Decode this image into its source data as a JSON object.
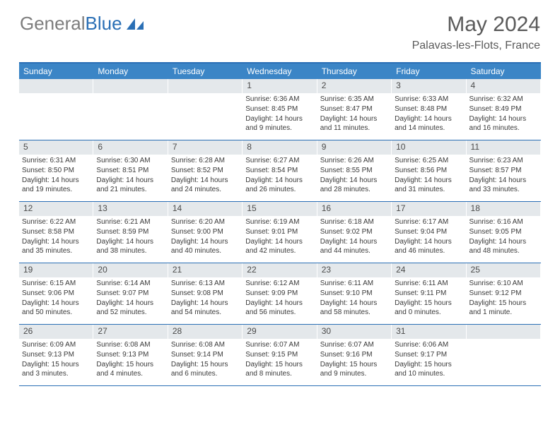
{
  "logo": {
    "text1": "General",
    "text2": "Blue"
  },
  "header": {
    "title": "May 2024",
    "location": "Palavas-les-Flots, France"
  },
  "colors": {
    "header_bar": "#3b85c6",
    "accent_border": "#2a6fb5",
    "daynum_bg": "#e4e8eb",
    "text_gray": "#5a5a5a"
  },
  "weekdays": [
    "Sunday",
    "Monday",
    "Tuesday",
    "Wednesday",
    "Thursday",
    "Friday",
    "Saturday"
  ],
  "weeks": [
    [
      null,
      null,
      null,
      {
        "n": "1",
        "sr": "6:36 AM",
        "ss": "8:45 PM",
        "dl": "14 hours and 9 minutes."
      },
      {
        "n": "2",
        "sr": "6:35 AM",
        "ss": "8:47 PM",
        "dl": "14 hours and 11 minutes."
      },
      {
        "n": "3",
        "sr": "6:33 AM",
        "ss": "8:48 PM",
        "dl": "14 hours and 14 minutes."
      },
      {
        "n": "4",
        "sr": "6:32 AM",
        "ss": "8:49 PM",
        "dl": "14 hours and 16 minutes."
      }
    ],
    [
      {
        "n": "5",
        "sr": "6:31 AM",
        "ss": "8:50 PM",
        "dl": "14 hours and 19 minutes."
      },
      {
        "n": "6",
        "sr": "6:30 AM",
        "ss": "8:51 PM",
        "dl": "14 hours and 21 minutes."
      },
      {
        "n": "7",
        "sr": "6:28 AM",
        "ss": "8:52 PM",
        "dl": "14 hours and 24 minutes."
      },
      {
        "n": "8",
        "sr": "6:27 AM",
        "ss": "8:54 PM",
        "dl": "14 hours and 26 minutes."
      },
      {
        "n": "9",
        "sr": "6:26 AM",
        "ss": "8:55 PM",
        "dl": "14 hours and 28 minutes."
      },
      {
        "n": "10",
        "sr": "6:25 AM",
        "ss": "8:56 PM",
        "dl": "14 hours and 31 minutes."
      },
      {
        "n": "11",
        "sr": "6:23 AM",
        "ss": "8:57 PM",
        "dl": "14 hours and 33 minutes."
      }
    ],
    [
      {
        "n": "12",
        "sr": "6:22 AM",
        "ss": "8:58 PM",
        "dl": "14 hours and 35 minutes."
      },
      {
        "n": "13",
        "sr": "6:21 AM",
        "ss": "8:59 PM",
        "dl": "14 hours and 38 minutes."
      },
      {
        "n": "14",
        "sr": "6:20 AM",
        "ss": "9:00 PM",
        "dl": "14 hours and 40 minutes."
      },
      {
        "n": "15",
        "sr": "6:19 AM",
        "ss": "9:01 PM",
        "dl": "14 hours and 42 minutes."
      },
      {
        "n": "16",
        "sr": "6:18 AM",
        "ss": "9:02 PM",
        "dl": "14 hours and 44 minutes."
      },
      {
        "n": "17",
        "sr": "6:17 AM",
        "ss": "9:04 PM",
        "dl": "14 hours and 46 minutes."
      },
      {
        "n": "18",
        "sr": "6:16 AM",
        "ss": "9:05 PM",
        "dl": "14 hours and 48 minutes."
      }
    ],
    [
      {
        "n": "19",
        "sr": "6:15 AM",
        "ss": "9:06 PM",
        "dl": "14 hours and 50 minutes."
      },
      {
        "n": "20",
        "sr": "6:14 AM",
        "ss": "9:07 PM",
        "dl": "14 hours and 52 minutes."
      },
      {
        "n": "21",
        "sr": "6:13 AM",
        "ss": "9:08 PM",
        "dl": "14 hours and 54 minutes."
      },
      {
        "n": "22",
        "sr": "6:12 AM",
        "ss": "9:09 PM",
        "dl": "14 hours and 56 minutes."
      },
      {
        "n": "23",
        "sr": "6:11 AM",
        "ss": "9:10 PM",
        "dl": "14 hours and 58 minutes."
      },
      {
        "n": "24",
        "sr": "6:11 AM",
        "ss": "9:11 PM",
        "dl": "15 hours and 0 minutes."
      },
      {
        "n": "25",
        "sr": "6:10 AM",
        "ss": "9:12 PM",
        "dl": "15 hours and 1 minute."
      }
    ],
    [
      {
        "n": "26",
        "sr": "6:09 AM",
        "ss": "9:13 PM",
        "dl": "15 hours and 3 minutes."
      },
      {
        "n": "27",
        "sr": "6:08 AM",
        "ss": "9:13 PM",
        "dl": "15 hours and 4 minutes."
      },
      {
        "n": "28",
        "sr": "6:08 AM",
        "ss": "9:14 PM",
        "dl": "15 hours and 6 minutes."
      },
      {
        "n": "29",
        "sr": "6:07 AM",
        "ss": "9:15 PM",
        "dl": "15 hours and 8 minutes."
      },
      {
        "n": "30",
        "sr": "6:07 AM",
        "ss": "9:16 PM",
        "dl": "15 hours and 9 minutes."
      },
      {
        "n": "31",
        "sr": "6:06 AM",
        "ss": "9:17 PM",
        "dl": "15 hours and 10 minutes."
      },
      null
    ]
  ],
  "labels": {
    "sunrise": "Sunrise:",
    "sunset": "Sunset:",
    "daylight": "Daylight:"
  }
}
